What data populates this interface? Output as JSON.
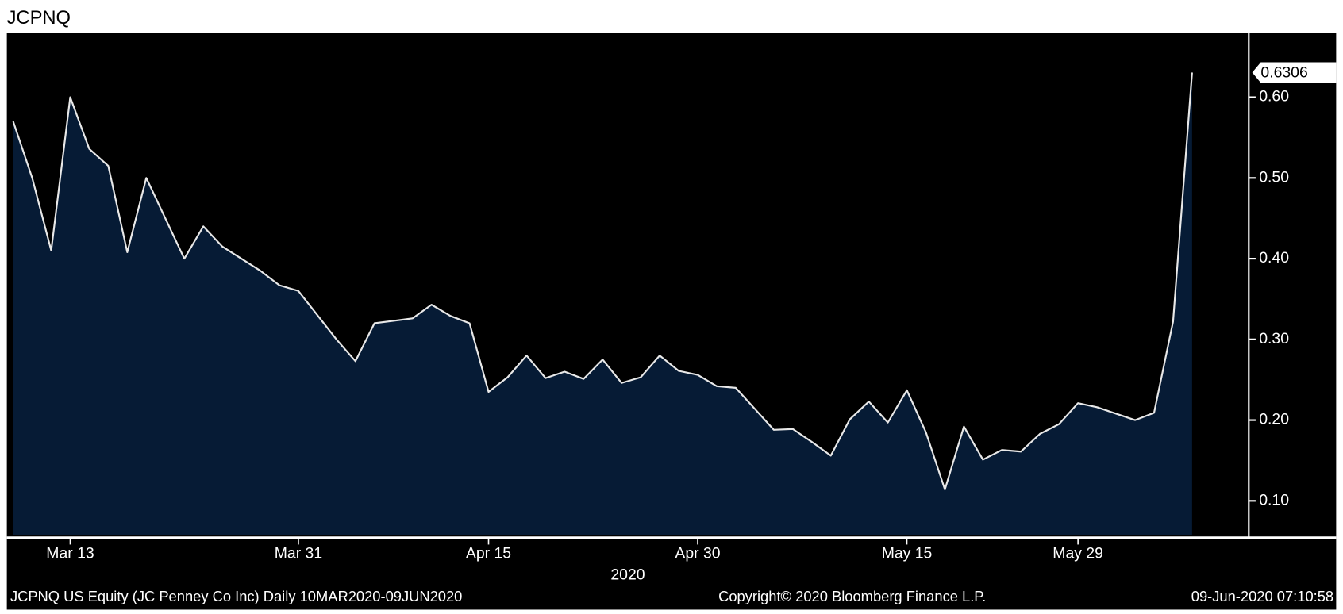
{
  "chart_data": {
    "type": "area",
    "title": "JCPNQ",
    "categories": [
      null,
      null,
      null,
      "Mar 13",
      null,
      null,
      null,
      null,
      null,
      null,
      null,
      null,
      null,
      null,
      null,
      "Mar 31",
      null,
      null,
      null,
      null,
      null,
      null,
      null,
      null,
      null,
      "Apr 15",
      null,
      null,
      null,
      null,
      null,
      null,
      null,
      null,
      null,
      null,
      "Apr 30",
      null,
      null,
      null,
      null,
      null,
      null,
      null,
      null,
      null,
      null,
      "May 15",
      null,
      null,
      null,
      null,
      null,
      null,
      null,
      null,
      "May 29",
      null,
      null,
      null,
      null,
      null,
      null
    ],
    "values": [
      0.57,
      0.5,
      0.41,
      0.6,
      0.536,
      0.515,
      0.408,
      0.5,
      0.45,
      0.4,
      0.44,
      0.415,
      0.4,
      0.385,
      0.367,
      0.36,
      0.33,
      0.3,
      0.273,
      0.32,
      0.323,
      0.326,
      0.343,
      0.329,
      0.32,
      0.235,
      0.253,
      0.28,
      0.252,
      0.26,
      0.251,
      0.275,
      0.246,
      0.253,
      0.28,
      0.261,
      0.256,
      0.242,
      0.24,
      0.214,
      0.188,
      0.189,
      0.173,
      0.156,
      0.201,
      0.223,
      0.197,
      0.237,
      0.185,
      0.114,
      0.192,
      0.151,
      0.163,
      0.161,
      0.183,
      0.195,
      0.221,
      0.216,
      0.208,
      0.2,
      0.209,
      0.322,
      0.6306
    ],
    "color": "#e8e8e8",
    "fill": "#061b35",
    "ylim": [
      0.0575,
      0.68
    ],
    "yticks": [
      {
        "value": 0.1,
        "label": "0.10"
      },
      {
        "value": 0.2,
        "label": "0.20"
      },
      {
        "value": 0.3,
        "label": "0.30"
      },
      {
        "value": 0.4,
        "label": "0.40"
      },
      {
        "value": 0.5,
        "label": "0.50"
      },
      {
        "value": 0.6,
        "label": "0.60"
      }
    ],
    "x_axis_label": "2020",
    "footer_left": "JCPNQ US Equity (JC Penney Co Inc)  Daily 10MAR2020-09JUN2020",
    "footer_center": "Copyright© 2020 Bloomberg Finance L.P.",
    "footer_right": "09-Jun-2020 07:10:58"
  }
}
